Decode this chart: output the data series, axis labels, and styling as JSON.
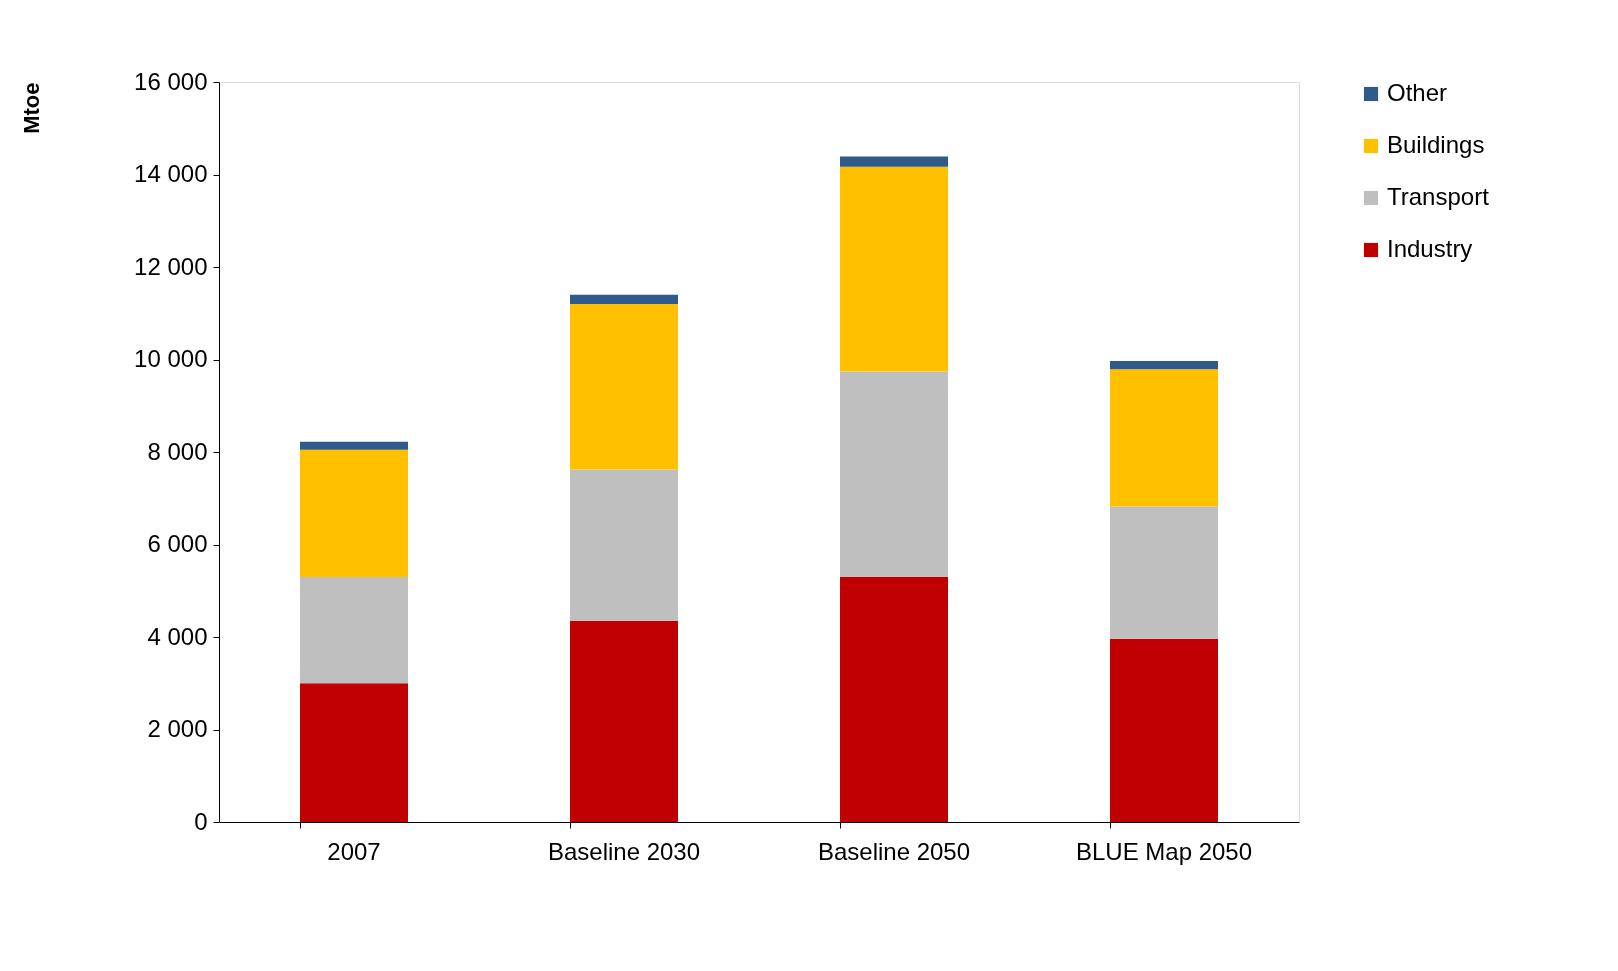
{
  "chart_data": {
    "type": "bar",
    "stacked": true,
    "ylabel": "Mtoe",
    "categories": [
      "2007",
      "Baseline 2030",
      "Baseline 2050",
      "BLUE Map 2050"
    ],
    "series": [
      {
        "name": "Industry",
        "color": "#c00000",
        "values": [
          3000,
          4350,
          5300,
          3960
        ]
      },
      {
        "name": "Transport",
        "color": "#bfbfbf",
        "values": [
          2300,
          3270,
          4440,
          2860
        ]
      },
      {
        "name": "Buildings",
        "color": "#ffc000",
        "values": [
          2750,
          3580,
          4430,
          2970
        ]
      },
      {
        "name": "Other",
        "color": "#2f5b8a",
        "values": [
          170,
          200,
          220,
          180
        ]
      }
    ],
    "ylim": [
      0,
      16000
    ],
    "yticks": [
      {
        "value": 0,
        "label": "0"
      },
      {
        "value": 2000,
        "label": "2 000"
      },
      {
        "value": 4000,
        "label": "4 000"
      },
      {
        "value": 6000,
        "label": "6 000"
      },
      {
        "value": 8000,
        "label": "8 000"
      },
      {
        "value": 10000,
        "label": "10 000"
      },
      {
        "value": 12000,
        "label": "12 000"
      },
      {
        "value": 14000,
        "label": "14 000"
      },
      {
        "value": 16000,
        "label": "16 000"
      }
    ],
    "grid": false,
    "legend": "top right"
  }
}
